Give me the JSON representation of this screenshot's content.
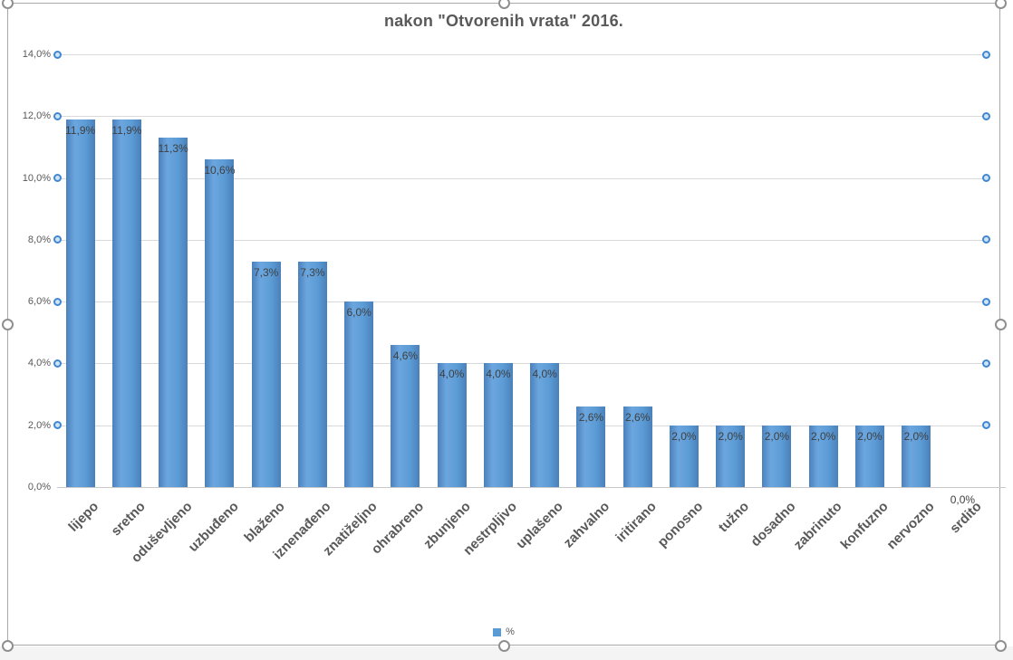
{
  "chart_data": {
    "type": "bar",
    "title": "nakon \"Otvorenih vrata\" 2016.",
    "categories": [
      "lijepo",
      "sretno",
      "oduševljeno",
      "uzbuđeno",
      "blaženo",
      "iznenađeno",
      "znatiželjno",
      "ohrabreno",
      "zbunjeno",
      "nestrpljivo",
      "uplašeno",
      "zahvalno",
      "iritirano",
      "ponosno",
      "tužno",
      "dosadno",
      "zabrinuto",
      "konfuzno",
      "nervozno",
      "srdito"
    ],
    "series": [
      {
        "name": "%",
        "values": [
          11.9,
          11.9,
          11.3,
          10.6,
          7.3,
          7.3,
          6.0,
          4.6,
          4.0,
          4.0,
          4.0,
          2.6,
          2.6,
          2.0,
          2.0,
          2.0,
          2.0,
          2.0,
          2.0,
          0.0
        ],
        "data_labels": [
          "11,9%",
          "11,9%",
          "11,3%",
          "10,6%",
          "7,3%",
          "7,3%",
          "6,0%",
          "4,6%",
          "4,0%",
          "4,0%",
          "4,0%",
          "2,6%",
          "2,6%",
          "2,0%",
          "2,0%",
          "2,0%",
          "2,0%",
          "2,0%",
          "2,0%",
          "0,0%"
        ]
      }
    ],
    "y_axis": {
      "min": 0,
      "max": 14,
      "step": 2,
      "ticks": [
        {
          "v": 0,
          "label": "0,0%"
        },
        {
          "v": 2,
          "label": "2,0%"
        },
        {
          "v": 4,
          "label": "4,0%"
        },
        {
          "v": 6,
          "label": "6,0%"
        },
        {
          "v": 8,
          "label": "8,0%"
        },
        {
          "v": 10,
          "label": "10,0%"
        },
        {
          "v": 12,
          "label": "12,0%"
        },
        {
          "v": 14,
          "label": "14,0%"
        }
      ]
    },
    "grid": true,
    "legend": {
      "position": "bottom",
      "label": "%"
    },
    "colors": {
      "bar": "#5b9bd5",
      "grid": "#d9d9d9",
      "axis_line": "#c9c9c9",
      "text": "#595959",
      "data_label": "#404040",
      "gridline_handle_border": "#3f87d2",
      "gridline_handle_fill": "#cfe4f7",
      "selection_handle_border": "#8f8f8f"
    }
  },
  "selection": {
    "chart_selected": true,
    "gridlines_selected": true
  }
}
